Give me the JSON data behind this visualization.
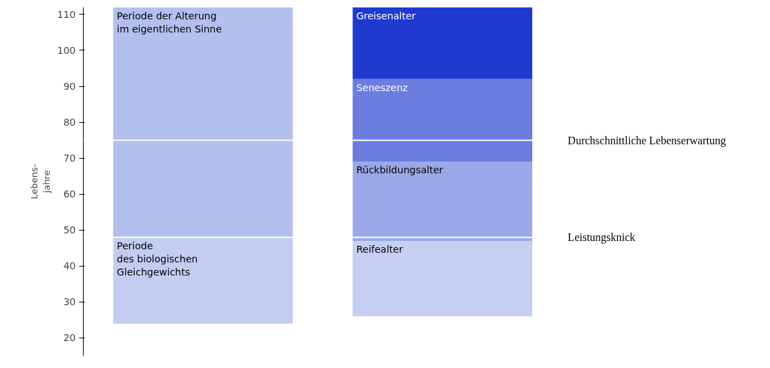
{
  "chart_data": {
    "type": "bar",
    "categories": [
      null,
      null
    ],
    "ylabel": "Lebens-\njahre",
    "ylim": [
      15,
      112
    ],
    "yticks": [
      20,
      30,
      40,
      50,
      60,
      70,
      80,
      90,
      100,
      110
    ],
    "grid": false,
    "series": [
      {
        "name": "Periode\ndes biologischen\nGleichgewichts",
        "color": "#c3ccf1",
        "values": [
          24,
          null
        ],
        "base": [
          24,
          null
        ]
      },
      {
        "name": "Periode der Alterung\nim eigentlichen Sinne",
        "color": "#b3bfee",
        "values": [
          64,
          null
        ],
        "base": [
          48,
          null
        ]
      },
      {
        "name": "Reifealter",
        "color": "#c6cef2",
        "values": [
          null,
          21
        ],
        "base": [
          null,
          26
        ]
      },
      {
        "name": "Rückbildungsalter",
        "color": "#9aa8e8",
        "values": [
          null,
          22
        ],
        "base": [
          null,
          47
        ]
      },
      {
        "name": "Seneszenz",
        "color": "#6b7ddf",
        "values": [
          null,
          23
        ],
        "base": [
          null,
          69
        ]
      },
      {
        "name": "Greisenalter",
        "color": "#1f3acf",
        "values": [
          null,
          20
        ],
        "base": [
          null,
          92
        ]
      }
    ],
    "ref_lines": [
      {
        "axis": "y",
        "value": 48,
        "label": "Leistungsknick",
        "color": "#ffffff"
      },
      {
        "axis": "y",
        "value": 75,
        "label": "Durchschnittliche Lebenserwartung",
        "color": "#ffffff"
      }
    ]
  }
}
